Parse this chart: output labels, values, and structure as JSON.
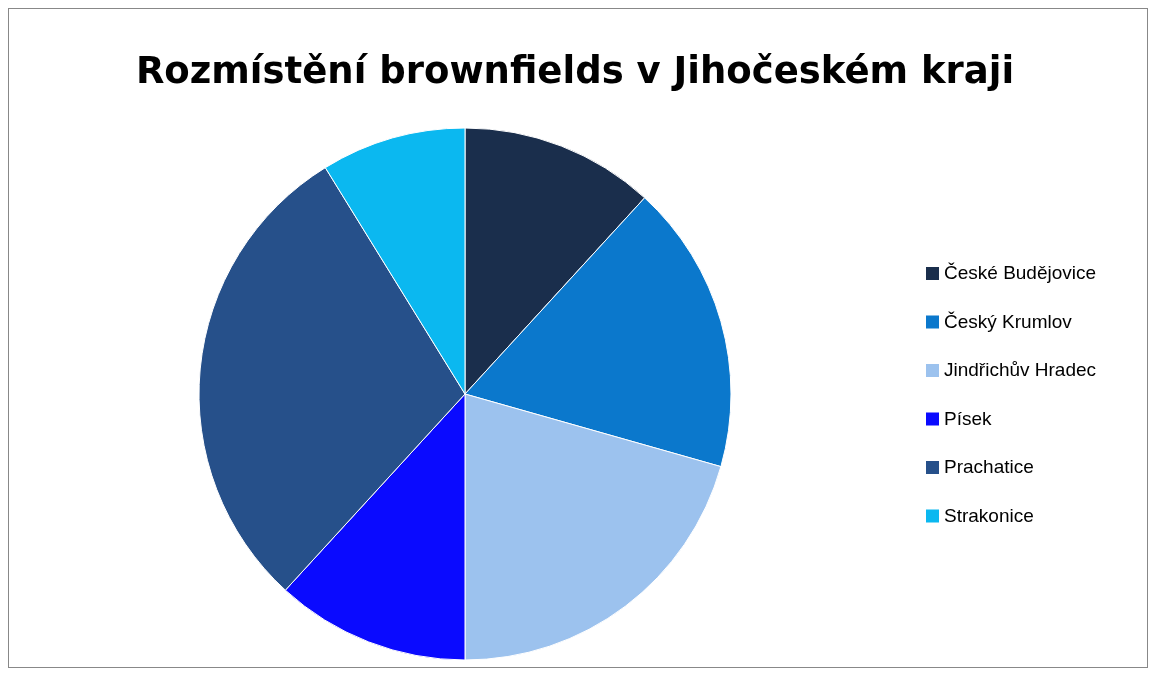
{
  "chart_data": {
    "type": "pie",
    "title": "Rozmístění brownfields v Jihočeském kraji",
    "categories": [
      "České Budějovice",
      "Český Krumlov",
      "Jindřichův Hradec",
      "Písek",
      "Prachatice",
      "Strakonice"
    ],
    "values": [
      11.8,
      17.6,
      20.6,
      11.8,
      29.4,
      8.8
    ],
    "colors": [
      "#1a2e4c",
      "#0b78cc",
      "#9cc2ee",
      "#0a0aff",
      "#26508a",
      "#0bb8f0"
    ],
    "legend": "right"
  }
}
